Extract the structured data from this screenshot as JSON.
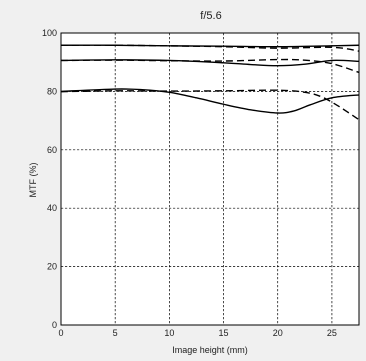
{
  "chart_data": {
    "type": "line",
    "title": "f/5.6",
    "xlabel": "Image height (mm)",
    "ylabel": "MTF (%)",
    "xlim": [
      0,
      27.5
    ],
    "ylim": [
      0,
      100
    ],
    "x_ticks": [
      0,
      5,
      10,
      15,
      20,
      25
    ],
    "y_ticks": [
      0,
      20,
      40,
      60,
      80,
      100
    ],
    "grid": true,
    "series": [
      {
        "style": "solid",
        "x": [
          0,
          5,
          10,
          15,
          20,
          25,
          27.5
        ],
        "y": [
          95.8,
          95.8,
          95.6,
          95.5,
          95.3,
          95.6,
          95.8
        ]
      },
      {
        "style": "dashed",
        "x": [
          0,
          5,
          10,
          15,
          20,
          25,
          27.5
        ],
        "y": [
          95.8,
          95.8,
          95.6,
          95.3,
          94.8,
          95.1,
          93.8
        ]
      },
      {
        "style": "solid",
        "x": [
          0,
          5,
          10,
          15,
          17.5,
          20,
          22.5,
          25,
          27.5
        ],
        "y": [
          90.6,
          90.8,
          90.6,
          89.8,
          89.2,
          88.8,
          89.3,
          90.6,
          90.3
        ]
      },
      {
        "style": "dashed",
        "x": [
          0,
          5,
          10,
          15,
          20,
          22.5,
          25,
          27.5
        ],
        "y": [
          90.6,
          90.7,
          90.5,
          90.4,
          90.9,
          90.7,
          89.5,
          86.5
        ]
      },
      {
        "style": "solid",
        "x": [
          0,
          5,
          7.5,
          10,
          12.5,
          15,
          17.5,
          20,
          21.5,
          23,
          25,
          27.5
        ],
        "y": [
          80.0,
          80.8,
          80.6,
          79.7,
          77.8,
          75.6,
          73.7,
          72.6,
          73.3,
          75.4,
          77.8,
          78.8
        ]
      },
      {
        "style": "dashed",
        "x": [
          0,
          5,
          10,
          15,
          20,
          22.5,
          24,
          25.5,
          27.5
        ],
        "y": [
          79.9,
          80.2,
          80.1,
          80.2,
          80.4,
          79.7,
          78.2,
          75.2,
          70.3
        ]
      }
    ]
  }
}
